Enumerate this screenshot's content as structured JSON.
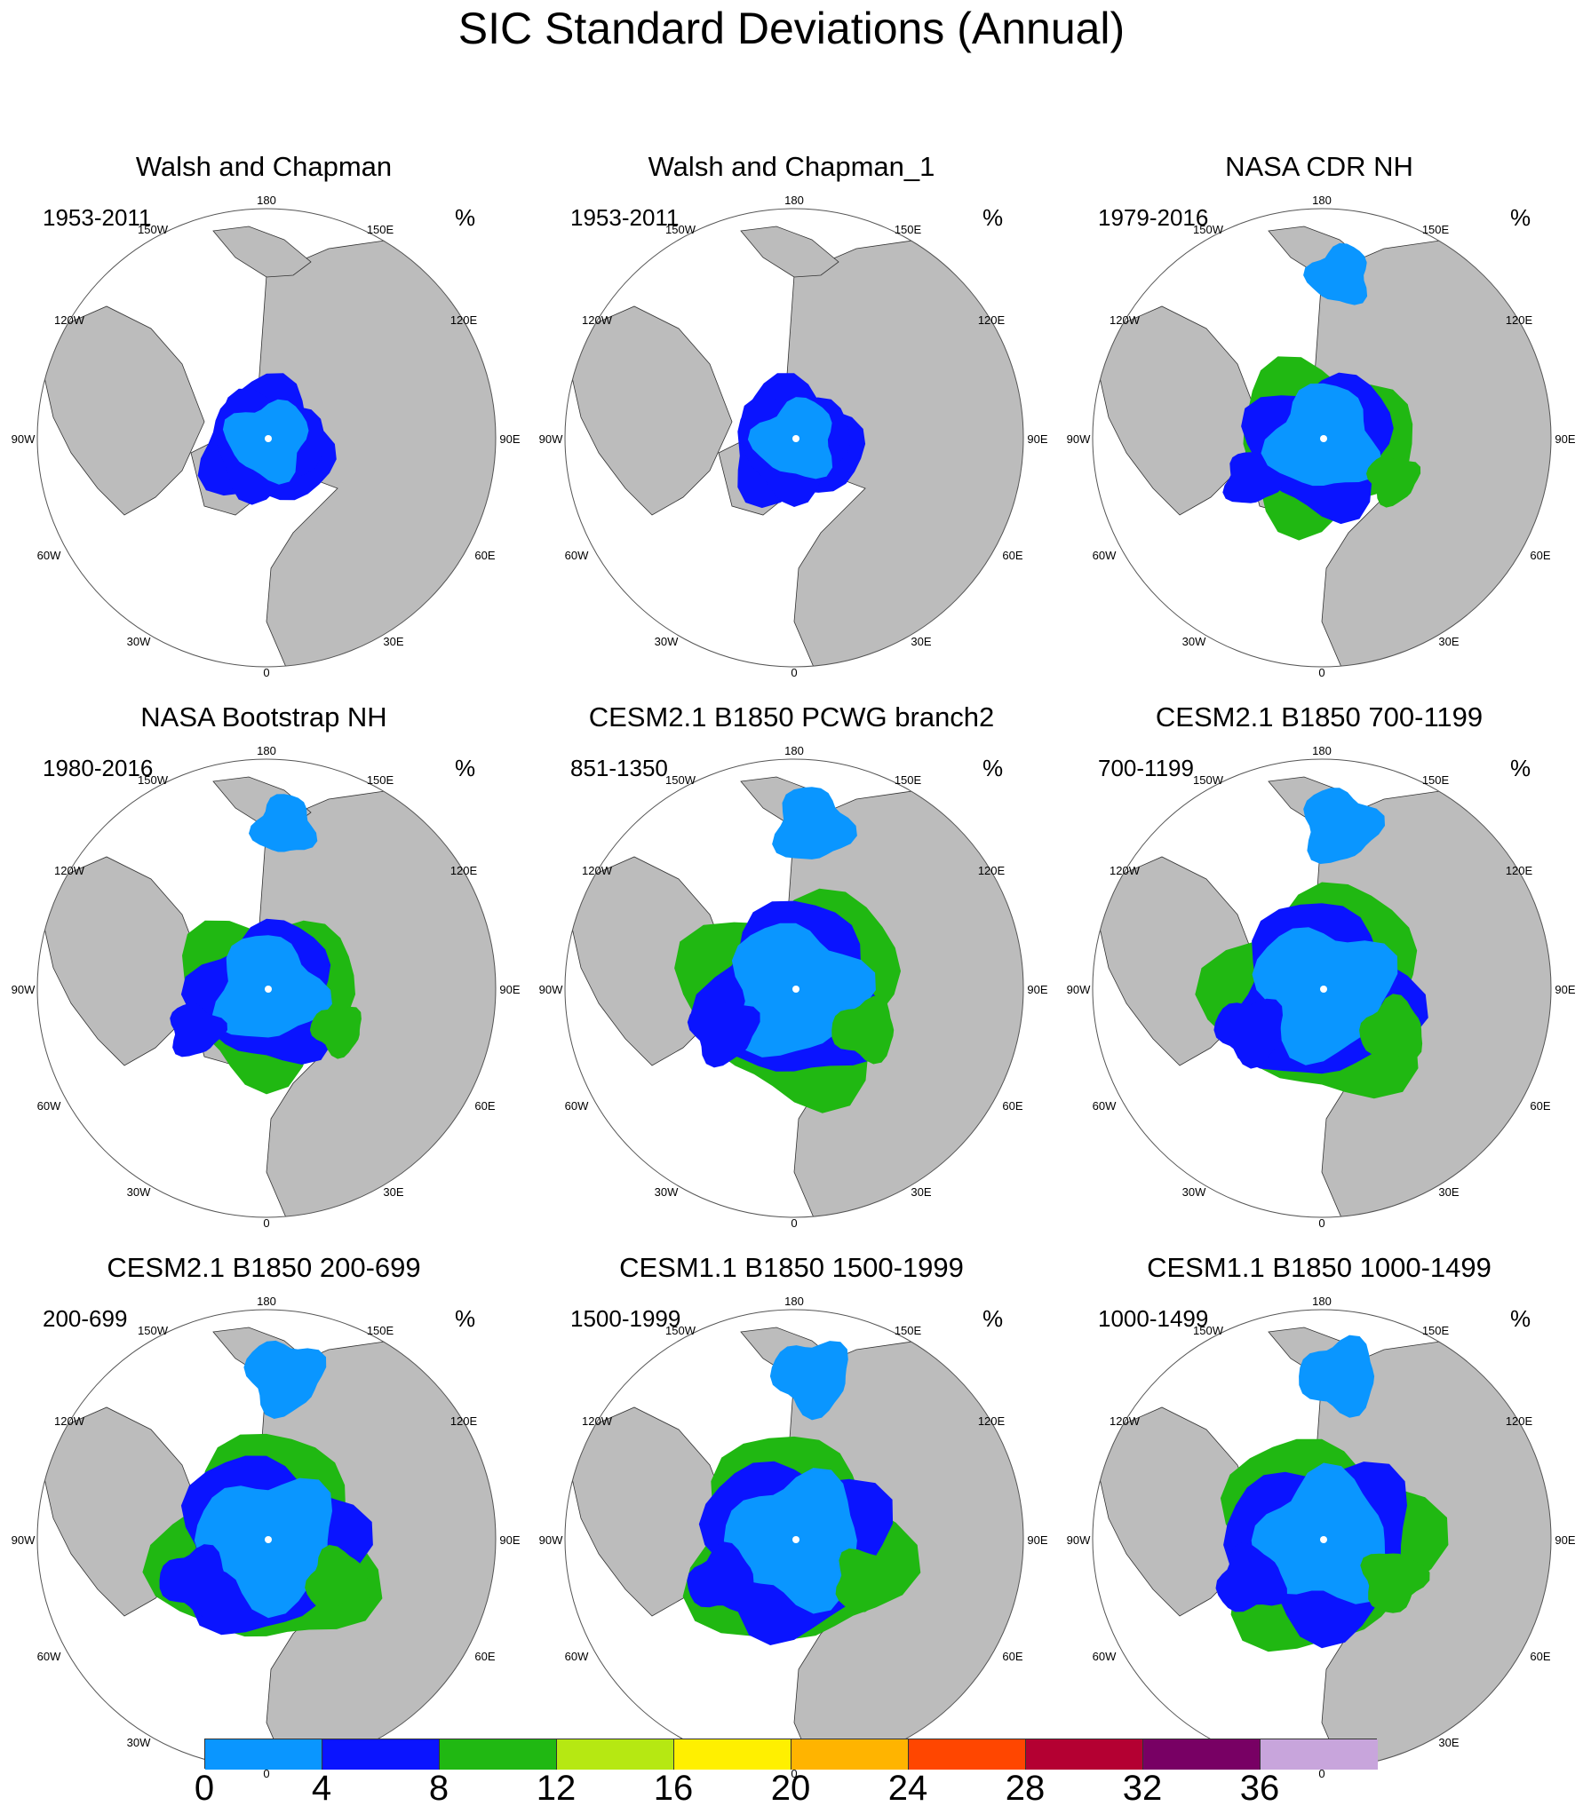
{
  "main_title": "SIC Standard Deviations (Annual)",
  "map_labels": {
    "top": "180",
    "bottom": "0",
    "lon_150w": "150W",
    "lon_150e": "150E",
    "lon_120w": "120W",
    "lon_120e": "120E",
    "lon_90w": "90W",
    "lon_90e": "90E",
    "lon_60w": "60W",
    "lon_60e": "60E",
    "lon_30w": "30W",
    "lon_30e": "30E"
  },
  "panels": [
    {
      "title": "Walsh and Chapman",
      "period": "1953-2011",
      "unit": "%"
    },
    {
      "title": "Walsh and Chapman_1",
      "period": "1953-2011",
      "unit": "%"
    },
    {
      "title": "NASA CDR NH",
      "period": "1979-2016",
      "unit": "%"
    },
    {
      "title": "NASA Bootstrap NH",
      "period": "1980-2016",
      "unit": "%"
    },
    {
      "title": "CESM2.1 B1850 PCWG branch2",
      "period": "851-1350",
      "unit": "%"
    },
    {
      "title": "CESM2.1 B1850 700-1199",
      "period": "700-1199",
      "unit": "%"
    },
    {
      "title": "CESM2.1 B1850 200-699",
      "period": "200-699",
      "unit": "%"
    },
    {
      "title": "CESM1.1 B1850 1500-1999",
      "period": "1500-1999",
      "unit": "%"
    },
    {
      "title": "CESM1.1 B1850 1000-1499",
      "period": "1000-1499",
      "unit": "%"
    }
  ],
  "colorbar": {
    "ticks": [
      "0",
      "4",
      "8",
      "12",
      "16",
      "20",
      "24",
      "28",
      "32",
      "36"
    ],
    "colors": [
      "#0a96ff",
      "#0a14ff",
      "#20b812",
      "#b6e812",
      "#fff000",
      "#ffb400",
      "#ff4600",
      "#b40032",
      "#780064",
      "#c8a5dc"
    ]
  },
  "colors": {
    "land": "#bcbcbc",
    "ocean": "#ffffff",
    "ice_low": "#0a96ff",
    "ice_mid": "#0a14ff",
    "ice_high": "#20b812"
  }
}
